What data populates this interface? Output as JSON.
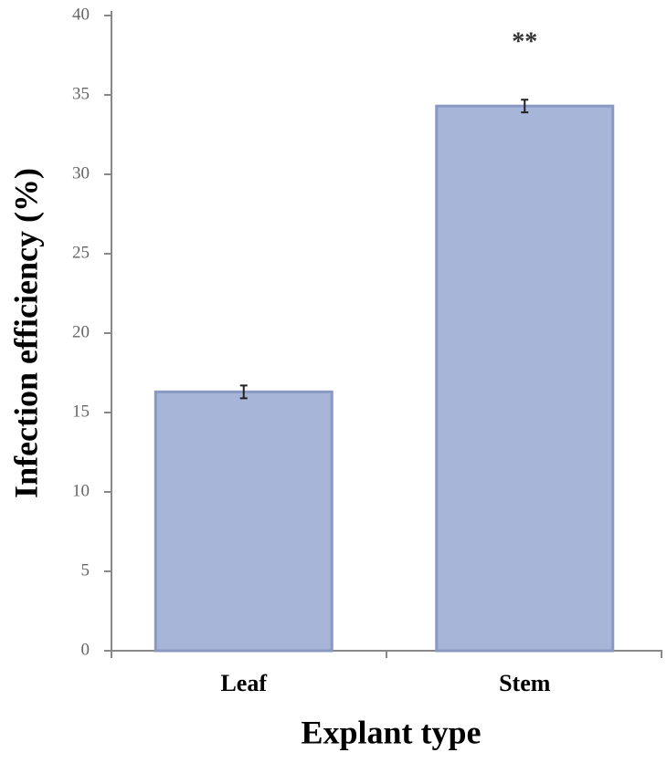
{
  "chart_data": {
    "type": "bar",
    "categories": [
      "Leaf",
      "Stem"
    ],
    "values": [
      16.3,
      34.3
    ],
    "errors": [
      0.4,
      0.4
    ],
    "color": "#a7b5d9",
    "xlabel": "Explant type",
    "ylabel": "Infection efficiency (%)",
    "annotation": "**",
    "ylim": [
      0,
      40
    ],
    "yticks": [
      0,
      5,
      10,
      15,
      20,
      25,
      30,
      35,
      40
    ],
    "grid": false
  }
}
